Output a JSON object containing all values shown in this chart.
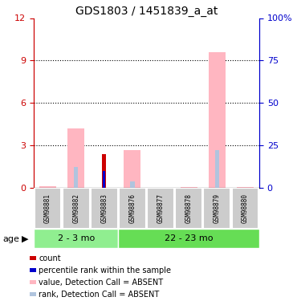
{
  "title": "GDS1803 / 1451839_a_at",
  "samples": [
    "GSM98881",
    "GSM98882",
    "GSM98883",
    "GSM98876",
    "GSM98877",
    "GSM98878",
    "GSM98879",
    "GSM98880"
  ],
  "groups": [
    {
      "label": "2 - 3 mo",
      "indices": [
        0,
        1,
        2
      ],
      "color": "#90EE90"
    },
    {
      "label": "22 - 23 mo",
      "indices": [
        3,
        4,
        5,
        6,
        7
      ],
      "color": "#66DD55"
    }
  ],
  "value_absent": [
    0.15,
    4.2,
    0.0,
    2.7,
    0.0,
    0.05,
    9.6,
    0.05
  ],
  "rank_absent_pct": [
    0.0,
    12.5,
    0.0,
    4.0,
    0.0,
    0.0,
    22.5,
    0.0
  ],
  "count": [
    0.0,
    0.0,
    2.4,
    0.0,
    0.0,
    0.0,
    0.0,
    0.0
  ],
  "pct_rank": [
    0.0,
    0.0,
    10.0,
    0.0,
    0.0,
    0.0,
    0.0,
    0.0
  ],
  "ylim_left": [
    0,
    12
  ],
  "ylim_right": [
    0,
    100
  ],
  "yticks_left": [
    0,
    3,
    6,
    9,
    12
  ],
  "yticks_right": [
    0,
    25,
    50,
    75,
    100
  ],
  "yticklabels_left": [
    "0",
    "3",
    "6",
    "9",
    "12"
  ],
  "yticklabels_right": [
    "0",
    "25",
    "50",
    "75",
    "100%"
  ],
  "left_color": "#cc0000",
  "right_color": "#0000cc",
  "absent_value_color": "#FFB6C1",
  "absent_rank_color": "#B0C4DE",
  "count_color": "#cc0000",
  "pct_rank_color": "#0000cc",
  "legend_items": [
    {
      "label": "count",
      "color": "#cc0000"
    },
    {
      "label": "percentile rank within the sample",
      "color": "#0000cc"
    },
    {
      "label": "value, Detection Call = ABSENT",
      "color": "#FFB6C1"
    },
    {
      "label": "rank, Detection Call = ABSENT",
      "color": "#B0C4DE"
    }
  ],
  "age_label": "age",
  "sample_box_color": "#cccccc",
  "grid_linestyle": ":",
  "grid_color": "#000000",
  "grid_linewidth": 0.8,
  "gridlines_at": [
    3,
    6,
    9
  ],
  "wide_bar_width": 0.6,
  "narrow_bar_width": 0.15
}
